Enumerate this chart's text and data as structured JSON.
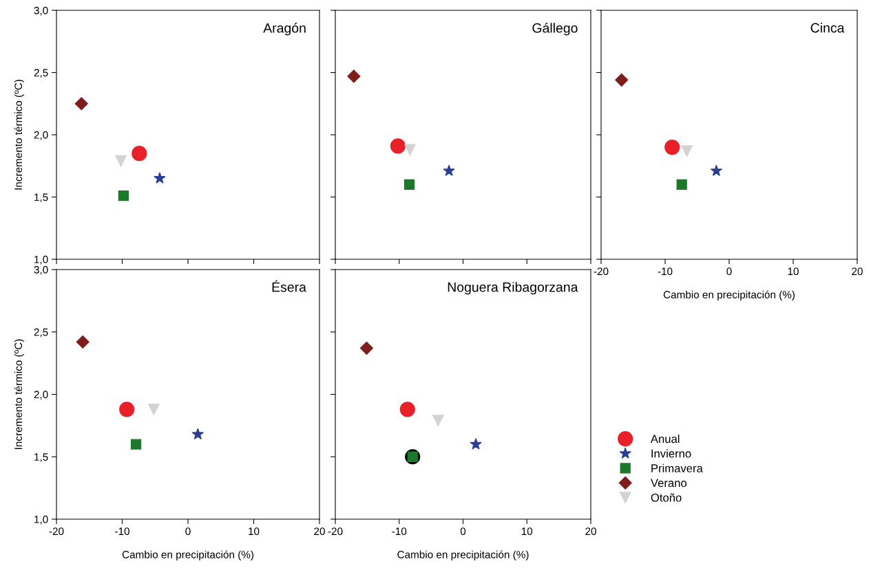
{
  "chart_data": [
    {
      "type": "scatter",
      "title": "Aragón",
      "ylabel": "Incremento térmico (ºC)",
      "xlim": [
        -20,
        20
      ],
      "ylim": [
        1.0,
        3.0
      ],
      "xticks": [
        {
          "value": -20,
          "label": null
        },
        {
          "value": -10,
          "label": null
        },
        {
          "value": 0,
          "label": null
        },
        {
          "value": 10,
          "label": null
        },
        {
          "value": 20,
          "label": null
        }
      ],
      "yticks": [
        {
          "value": 1.0,
          "label": "1,0"
        },
        {
          "value": 1.5,
          "label": "1,5"
        },
        {
          "value": 2.0,
          "label": "2,0"
        },
        {
          "value": 2.5,
          "label": "2,5"
        },
        {
          "value": 3.0,
          "label": "3,0"
        }
      ],
      "tick_labels": "y",
      "grid": false,
      "series": [
        {
          "color": "#e8202a",
          "marker": "circle",
          "x": [
            -7.4
          ],
          "values": [
            1.85
          ]
        },
        {
          "color": "#2b3f94",
          "marker": "star",
          "x": [
            -4.3
          ],
          "values": [
            1.65
          ]
        },
        {
          "color": "#1a7a2a",
          "marker": "square",
          "x": [
            -9.8
          ],
          "values": [
            1.51
          ]
        },
        {
          "color": "#7f1d1d",
          "marker": "diamond",
          "x": [
            -16.2
          ],
          "values": [
            2.25
          ]
        },
        {
          "color": "#d3d3d3",
          "marker": "triangle",
          "x": [
            -10.2
          ],
          "values": [
            1.79
          ]
        }
      ]
    },
    {
      "type": "scatter",
      "title": "Gállego",
      "xlim": [
        -20,
        20
      ],
      "ylim": [
        1.0,
        3.0
      ],
      "xticks": [
        {
          "value": -20,
          "label": null
        },
        {
          "value": -10,
          "label": null
        },
        {
          "value": 0,
          "label": null
        },
        {
          "value": 10,
          "label": null
        },
        {
          "value": 20,
          "label": null
        }
      ],
      "yticks": [
        {
          "value": 1.0,
          "label": null
        },
        {
          "value": 1.5,
          "label": null
        },
        {
          "value": 2.0,
          "label": null
        },
        {
          "value": 2.5,
          "label": null
        },
        {
          "value": 3.0,
          "label": null
        }
      ],
      "tick_labels": false,
      "grid": false,
      "series": [
        {
          "color": "#e8202a",
          "marker": "circle",
          "x": [
            -10.2
          ],
          "values": [
            1.91
          ]
        },
        {
          "color": "#2b3f94",
          "marker": "star",
          "x": [
            -2.2
          ],
          "values": [
            1.71
          ]
        },
        {
          "color": "#1a7a2a",
          "marker": "square",
          "x": [
            -8.4
          ],
          "values": [
            1.6
          ]
        },
        {
          "color": "#7f1d1d",
          "marker": "diamond",
          "x": [
            -17.1
          ],
          "values": [
            2.47
          ]
        },
        {
          "color": "#d3d3d3",
          "marker": "triangle",
          "x": [
            -8.3
          ],
          "values": [
            1.88
          ]
        }
      ]
    },
    {
      "type": "scatter",
      "title": "Cinca",
      "xlabel": "Cambio en precipitación (%)",
      "xlim": [
        -20,
        20
      ],
      "ylim": [
        1.0,
        3.0
      ],
      "xticks": [
        -20,
        -10,
        0,
        10,
        20
      ],
      "yticks": [
        {
          "value": 1.0,
          "label": null
        },
        {
          "value": 1.5,
          "label": null
        },
        {
          "value": 2.0,
          "label": null
        },
        {
          "value": 2.5,
          "label": null
        },
        {
          "value": 3.0,
          "label": null
        }
      ],
      "tick_labels": "x",
      "grid": false,
      "series": [
        {
          "color": "#e8202a",
          "marker": "circle",
          "x": [
            -8.9
          ],
          "values": [
            1.9
          ]
        },
        {
          "color": "#2b3f94",
          "marker": "star",
          "x": [
            -2.0
          ],
          "values": [
            1.71
          ]
        },
        {
          "color": "#1a7a2a",
          "marker": "square",
          "x": [
            -7.4
          ],
          "values": [
            1.6
          ]
        },
        {
          "color": "#7f1d1d",
          "marker": "diamond",
          "x": [
            -16.8
          ],
          "values": [
            2.44
          ]
        },
        {
          "color": "#d3d3d3",
          "marker": "triangle",
          "x": [
            -6.6
          ],
          "values": [
            1.87
          ]
        }
      ]
    },
    {
      "type": "scatter",
      "title": "Ésera",
      "xlabel": "Cambio en precipitación (%)",
      "ylabel": "Incremento térmico (ºC)",
      "xlim": [
        -20,
        20
      ],
      "ylim": [
        1.0,
        3.0
      ],
      "xticks": [
        -20,
        -10,
        0,
        10,
        20
      ],
      "yticks": [
        {
          "value": 1.0,
          "label": "1,0"
        },
        {
          "value": 1.5,
          "label": "1,5"
        },
        {
          "value": 2.0,
          "label": "2,0"
        },
        {
          "value": 2.5,
          "label": "2,5"
        },
        {
          "value": 3.0,
          "label": "3,0"
        }
      ],
      "grid": false,
      "series": [
        {
          "color": "#e8202a",
          "marker": "circle",
          "x": [
            -9.3
          ],
          "values": [
            1.88
          ]
        },
        {
          "color": "#2b3f94",
          "marker": "star",
          "x": [
            1.5
          ],
          "values": [
            1.68
          ]
        },
        {
          "color": "#1a7a2a",
          "marker": "square",
          "x": [
            -7.9
          ],
          "values": [
            1.6
          ]
        },
        {
          "color": "#7f1d1d",
          "marker": "diamond",
          "x": [
            -16.0
          ],
          "values": [
            2.42
          ]
        },
        {
          "color": "#d3d3d3",
          "marker": "triangle",
          "x": [
            -5.2
          ],
          "values": [
            1.88
          ]
        }
      ]
    },
    {
      "type": "scatter",
      "title": "Noguera Ribagorzana",
      "xlabel": "Cambio en precipitación (%)",
      "xlim": [
        -20,
        20
      ],
      "ylim": [
        1.0,
        3.0
      ],
      "xticks": [
        -20,
        -10,
        0,
        10,
        20
      ],
      "yticks": [
        {
          "value": 1.0,
          "label": null
        },
        {
          "value": 1.5,
          "label": null
        },
        {
          "value": 2.0,
          "label": null
        },
        {
          "value": 2.5,
          "label": null
        },
        {
          "value": 3.0,
          "label": null
        }
      ],
      "tick_labels": "x",
      "grid": false,
      "legend": "right",
      "series": [
        {
          "color": "#000000",
          "marker": "circle",
          "x": [
            -7.9
          ],
          "values": [
            1.5
          ]
        },
        {
          "name": "Anual",
          "color": "#e8202a",
          "marker": "circle",
          "x": [
            -8.7
          ],
          "values": [
            1.88
          ]
        },
        {
          "name": "Invierno",
          "color": "#2b3f94",
          "marker": "star",
          "x": [
            2.0
          ],
          "values": [
            1.6
          ]
        },
        {
          "name": "Primavera",
          "color": "#1a7a2a",
          "marker": "square",
          "x": [
            -7.9
          ],
          "values": [
            1.5
          ]
        },
        {
          "name": "Verano",
          "color": "#7f1d1d",
          "marker": "diamond",
          "x": [
            -15.1
          ],
          "values": [
            2.37
          ]
        },
        {
          "name": "Otoño",
          "color": "#d3d3d3",
          "marker": "triangle",
          "x": [
            -3.9
          ],
          "values": [
            1.79
          ]
        }
      ]
    }
  ]
}
